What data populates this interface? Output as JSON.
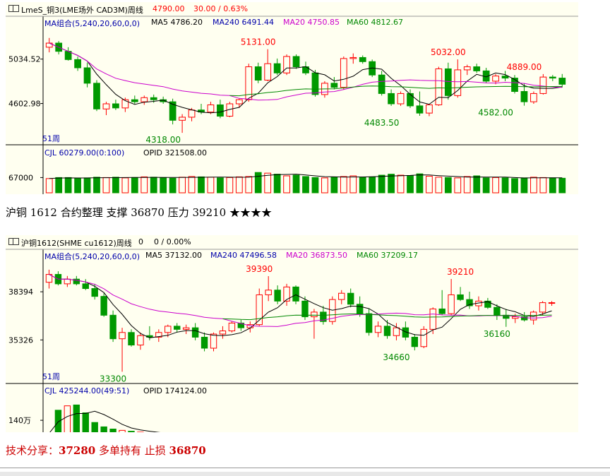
{
  "charts": [
    {
      "title": "LmeS_铜3(LME场外 CAD3M)周线",
      "price": "4790.00",
      "change": "30.00 / 0.63%",
      "ma_label": "MA组合(5,240,20,60,0,0)",
      "ma5": "MA5 4786.20",
      "ma240": "MA240 6491.44",
      "ma20": "MA20 4750.85",
      "ma60": "MA60 4812.67",
      "period": "51周",
      "vol_label": "CJL  60279.00(0:100)",
      "opid_label": "OPID  321508.00",
      "colors": {
        "ma5": "#000000",
        "ma20": "#cc00cc",
        "ma60": "#008800",
        "up": "#ff0000",
        "down": "#009900"
      }
    },
    {
      "title": "沪铜1612(SHME cu1612)周线",
      "price": "0",
      "change": "0 / 0.00%",
      "ma_label": "MA组合(5,240,20,60,0,0)",
      "ma5": "MA5 37132.00",
      "ma240": "MA240 47496.58",
      "ma20": "MA20 36873.50",
      "ma60": "MA60 37209.17",
      "period": "51周",
      "vol_label": "CJL  425244.00(49:51)",
      "opid_label": "OPID  174124.00",
      "colors": {
        "ma5": "#000000",
        "ma20": "#cc00cc",
        "ma60": "#008800",
        "up": "#ff0000",
        "down": "#009900"
      }
    }
  ],
  "chart_data": [
    {
      "type": "candlestick",
      "axis_labels": [
        "5034.52",
        "4602.98"
      ],
      "axis_values": [
        5034.52,
        4602.98
      ],
      "annotations": [
        {
          "text": "5131.00",
          "value": 5131,
          "index": 22,
          "kind": "high"
        },
        {
          "text": "5032.00",
          "value": 5032,
          "index": 42,
          "kind": "high"
        },
        {
          "text": "4889.00",
          "value": 4889,
          "index": 50,
          "kind": "high"
        },
        {
          "text": "4318.00",
          "value": 4318,
          "index": 12,
          "kind": "low"
        },
        {
          "text": "4483.50",
          "value": 4483.5,
          "index": 35,
          "kind": "low"
        },
        {
          "text": "4582.00",
          "value": 4582,
          "index": 47,
          "kind": "low"
        }
      ],
      "price_range": [
        4250,
        5300
      ],
      "candles": [
        [
          5150,
          5240,
          5100,
          5190
        ],
        [
          5190,
          5210,
          5080,
          5110
        ],
        [
          5110,
          5150,
          5020,
          5030
        ],
        [
          5030,
          5060,
          4920,
          4950
        ],
        [
          4950,
          5000,
          4760,
          4800
        ],
        [
          4800,
          4830,
          4530,
          4550
        ],
        [
          4550,
          4620,
          4490,
          4600
        ],
        [
          4600,
          4640,
          4540,
          4560
        ],
        [
          4560,
          4660,
          4520,
          4640
        ],
        [
          4640,
          4680,
          4600,
          4620
        ],
        [
          4620,
          4680,
          4590,
          4660
        ],
        [
          4660,
          4690,
          4610,
          4640
        ],
        [
          4640,
          4670,
          4600,
          4620
        ],
        [
          4620,
          4650,
          4400,
          4440
        ],
        [
          4440,
          4500,
          4318,
          4470
        ],
        [
          4470,
          4560,
          4430,
          4540
        ],
        [
          4540,
          4600,
          4500,
          4520
        ],
        [
          4520,
          4620,
          4500,
          4590
        ],
        [
          4590,
          4640,
          4460,
          4480
        ],
        [
          4480,
          4620,
          4470,
          4600
        ],
        [
          4600,
          4650,
          4560,
          4640
        ],
        [
          4640,
          4990,
          4620,
          4960
        ],
        [
          4960,
          5000,
          4800,
          4830
        ],
        [
          4830,
          5131,
          4820,
          4990
        ],
        [
          4990,
          5040,
          4880,
          4900
        ],
        [
          4900,
          5080,
          4880,
          5060
        ],
        [
          5060,
          5080,
          4940,
          4960
        ],
        [
          4960,
          5010,
          4880,
          4900
        ],
        [
          4900,
          4930,
          4670,
          4690
        ],
        [
          4690,
          4820,
          4660,
          4800
        ],
        [
          4800,
          4860,
          4740,
          4760
        ],
        [
          4760,
          5060,
          4740,
          5040
        ],
        [
          5040,
          5090,
          4990,
          5050
        ],
        [
          5050,
          5070,
          4990,
          5010
        ],
        [
          5010,
          5030,
          4860,
          4880
        ],
        [
          4880,
          4920,
          4680,
          4700
        ],
        [
          4700,
          4740,
          4580,
          4600
        ],
        [
          4600,
          4720,
          4580,
          4700
        ],
        [
          4700,
          4740,
          4560,
          4580
        ],
        [
          4580,
          4720,
          4483.5,
          4510
        ],
        [
          4510,
          4600,
          4480,
          4590
        ],
        [
          4590,
          4960,
          4580,
          4940
        ],
        [
          4940,
          5000,
          4640,
          4680
        ],
        [
          4680,
          5032,
          4660,
          4930
        ],
        [
          4930,
          4980,
          4880,
          4960
        ],
        [
          4960,
          4990,
          4900,
          4920
        ],
        [
          4920,
          4950,
          4800,
          4820
        ],
        [
          4820,
          4890,
          4790,
          4870
        ],
        [
          4870,
          4920,
          4820,
          4850
        ],
        [
          4850,
          4880,
          4700,
          4720
        ],
        [
          4720,
          4800,
          4582,
          4620
        ],
        [
          4620,
          4720,
          4600,
          4700
        ],
        [
          4700,
          4889,
          4690,
          4860
        ],
        [
          4860,
          4880,
          4820,
          4850
        ],
        [
          4850,
          4890,
          4760,
          4790
        ]
      ],
      "volumes": [
        0.42,
        0.45,
        0.45,
        0.43,
        0.44,
        0.46,
        0.45,
        0.46,
        0.44,
        0.45,
        0.47,
        0.46,
        0.45,
        0.43,
        0.46,
        0.48,
        0.47,
        0.46,
        0.44,
        0.45,
        0.47,
        0.48,
        0.6,
        0.58,
        0.55,
        0.5,
        0.52,
        0.48,
        0.45,
        0.44,
        0.46,
        0.48,
        0.5,
        0.45,
        0.47,
        0.52,
        0.55,
        0.52,
        0.5,
        0.56,
        0.49,
        0.46,
        0.45,
        0.44,
        0.48,
        0.5,
        0.44,
        0.45,
        0.44,
        0.42,
        0.44,
        0.46,
        0.45,
        0.44,
        0.43
      ],
      "vol_axis_label": "67000",
      "vol_axis_value": 67000
    },
    {
      "type": "candlestick",
      "axis_labels": [
        "38394",
        "35326"
      ],
      "axis_values": [
        38394,
        35326
      ],
      "annotations": [
        {
          "text": "39390",
          "value": 39390,
          "index": 23,
          "kind": "high"
        },
        {
          "text": "39210",
          "value": 39210,
          "index": 45,
          "kind": "high"
        },
        {
          "text": "33300",
          "value": 33300,
          "index": 7,
          "kind": "low"
        },
        {
          "text": "34660",
          "value": 34660,
          "index": 38,
          "kind": "low"
        },
        {
          "text": "36160",
          "value": 36160,
          "index": 49,
          "kind": "low"
        }
      ],
      "price_range": [
        33000,
        40200
      ],
      "candles": [
        [
          39000,
          39800,
          38600,
          39500
        ],
        [
          39500,
          39700,
          38800,
          38900
        ],
        [
          38900,
          39400,
          38700,
          39200
        ],
        [
          39200,
          39400,
          38800,
          38900
        ],
        [
          38900,
          39200,
          38500,
          38600
        ],
        [
          38600,
          38900,
          37900,
          38100
        ],
        [
          38100,
          38300,
          36800,
          36900
        ],
        [
          36900,
          37200,
          35200,
          35400
        ],
        [
          35400,
          36100,
          33300,
          35800
        ],
        [
          35800,
          36000,
          34900,
          35000
        ],
        [
          35000,
          35800,
          34700,
          35600
        ],
        [
          35600,
          36200,
          35300,
          35500
        ],
        [
          35500,
          36000,
          35200,
          35800
        ],
        [
          35800,
          36300,
          35500,
          36200
        ],
        [
          36200,
          36400,
          35800,
          36000
        ],
        [
          36000,
          36300,
          35700,
          36100
        ],
        [
          36100,
          36400,
          35300,
          35500
        ],
        [
          35500,
          35800,
          34600,
          34800
        ],
        [
          34800,
          35800,
          34600,
          35700
        ],
        [
          35700,
          36200,
          35400,
          35900
        ],
        [
          35900,
          36500,
          35800,
          36400
        ],
        [
          36400,
          36600,
          35900,
          36100
        ],
        [
          36100,
          36500,
          35800,
          36300
        ],
        [
          36300,
          38600,
          36200,
          38200
        ],
        [
          38200,
          39390,
          37800,
          38500
        ],
        [
          38500,
          38800,
          37600,
          37800
        ],
        [
          37800,
          38900,
          37500,
          38700
        ],
        [
          38700,
          38800,
          37600,
          37800
        ],
        [
          37800,
          38100,
          36600,
          36800
        ],
        [
          36800,
          37300,
          35400,
          37100
        ],
        [
          37100,
          37500,
          36300,
          36500
        ],
        [
          36500,
          38100,
          36300,
          37900
        ],
        [
          37900,
          38500,
          37600,
          38300
        ],
        [
          38300,
          38600,
          37400,
          37600
        ],
        [
          37600,
          38100,
          36800,
          37000
        ],
        [
          37000,
          37300,
          35600,
          35800
        ],
        [
          35800,
          36500,
          35500,
          36200
        ],
        [
          36200,
          36600,
          35400,
          35600
        ],
        [
          35600,
          36400,
          35300,
          36100
        ],
        [
          36100,
          36500,
          35300,
          35500
        ],
        [
          35500,
          35700,
          34660,
          34900
        ],
        [
          34900,
          36200,
          34800,
          36000
        ],
        [
          36000,
          37400,
          35700,
          37300
        ],
        [
          37300,
          38500,
          36900,
          37000
        ],
        [
          37000,
          39210,
          36900,
          38200
        ],
        [
          38200,
          38700,
          37800,
          37900
        ],
        [
          37900,
          38400,
          37300,
          37500
        ],
        [
          37500,
          38100,
          37200,
          37800
        ],
        [
          37800,
          38000,
          37300,
          37400
        ],
        [
          37400,
          37600,
          36600,
          36900
        ],
        [
          36900,
          37300,
          36160,
          36700
        ],
        [
          36700,
          37000,
          36400,
          36800
        ],
        [
          36800,
          37100,
          36500,
          36600
        ],
        [
          36600,
          37200,
          36300,
          37100
        ],
        [
          37100,
          37800,
          36900,
          37700
        ],
        [
          37700,
          37800,
          37500,
          37700
        ]
      ],
      "volumes": [
        0.15,
        0.68,
        0.78,
        0.8,
        0.62,
        0.4,
        0.3,
        0.25,
        0.22,
        0.2,
        0.18,
        0.15,
        0.12,
        0.1,
        0.08,
        0.06,
        0.05,
        0.04,
        0.03,
        0.03,
        0.02,
        0.02,
        0.02,
        0.02,
        0.02,
        0.02,
        0.02,
        0.02,
        0.02,
        0.02,
        0.02,
        0.02,
        0.02,
        0.02,
        0.02,
        0.02,
        0.02,
        0.02,
        0.02,
        0.02,
        0.02,
        0.02,
        0.02,
        0.02,
        0.02,
        0.02,
        0.02,
        0.02,
        0.02,
        0.02,
        0.02,
        0.04,
        0.05,
        0.1,
        0.12,
        0.13
      ],
      "vol_axis_label": "140万",
      "vol_axis_value": 1400000
    }
  ],
  "notes": {
    "line1": "沪铜 1612 合约整理   支撑 36870    压力 39210    ★★★★",
    "line2_prefix": "技术分享：",
    "line2_price": "37280",
    "line2_mid": " 多单持有  止损 ",
    "line2_stop": "36870"
  }
}
